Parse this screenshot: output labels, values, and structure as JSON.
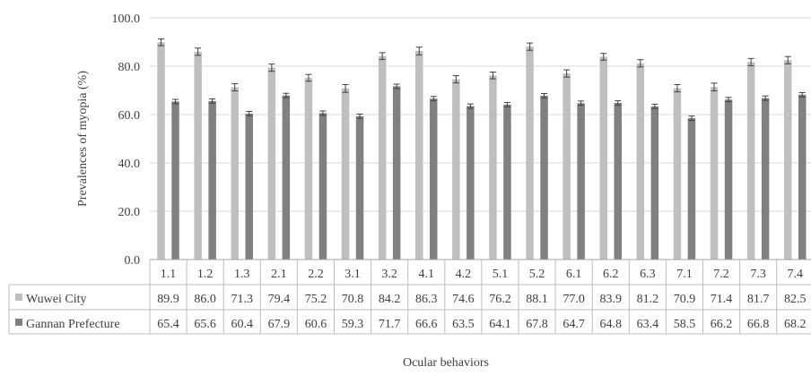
{
  "chart_data": {
    "type": "bar",
    "ylabel": "Prevalences of myopia (%)",
    "xlabel": "Ocular behaviors",
    "ylim": [
      0,
      100
    ],
    "yticks": [
      "0.0",
      "20.0",
      "40.0",
      "60.0",
      "80.0",
      "100.0"
    ],
    "grid": true,
    "legend": "data-table",
    "error_bars": true,
    "categories": [
      "1.1",
      "1.2",
      "1.3",
      "2.1",
      "2.2",
      "3.1",
      "3.2",
      "4.1",
      "4.2",
      "5.1",
      "5.2",
      "6.1",
      "6.2",
      "6.3",
      "7.1",
      "7.2",
      "7.3",
      "7.4"
    ],
    "series": [
      {
        "name": "Wuwei City",
        "color": "#bfbfbf",
        "values": [
          89.9,
          86.0,
          71.3,
          79.4,
          75.2,
          70.8,
          84.2,
          86.3,
          74.6,
          76.2,
          88.1,
          77.0,
          83.9,
          81.2,
          70.9,
          71.4,
          81.7,
          82.5
        ],
        "labels": [
          "89.9",
          "86.0",
          "71.3",
          "79.4",
          "75.2",
          "70.8",
          "84.2",
          "86.3",
          "74.6",
          "76.2",
          "88.1",
          "77.0",
          "83.9",
          "81.2",
          "70.9",
          "71.4",
          "81.7",
          "82.5"
        ]
      },
      {
        "name": "Gannan Prefecture",
        "color": "#808080",
        "values": [
          65.4,
          65.6,
          60.4,
          67.9,
          60.6,
          59.3,
          71.7,
          66.6,
          63.5,
          64.1,
          67.8,
          64.7,
          64.8,
          63.4,
          58.5,
          66.2,
          66.8,
          68.2
        ],
        "labels": [
          "65.4",
          "65.6",
          "60.4",
          "67.9",
          "60.6",
          "59.3",
          "71.7",
          "66.6",
          "63.5",
          "64.1",
          "67.8",
          "64.7",
          "64.8",
          "63.4",
          "58.5",
          "66.2",
          "66.8",
          "68.2"
        ]
      }
    ],
    "error_values": [
      [
        1.4,
        1.5,
        1.5,
        1.5,
        1.4,
        1.6,
        1.4,
        1.6,
        1.5,
        1.4,
        1.5,
        1.5,
        1.4,
        1.5,
        1.5,
        1.6,
        1.5,
        1.5
      ],
      [
        0.9,
        0.9,
        0.9,
        0.9,
        0.9,
        0.9,
        0.9,
        0.9,
        0.9,
        0.9,
        0.9,
        0.9,
        0.9,
        0.9,
        0.9,
        0.9,
        0.9,
        0.9
      ]
    ]
  }
}
